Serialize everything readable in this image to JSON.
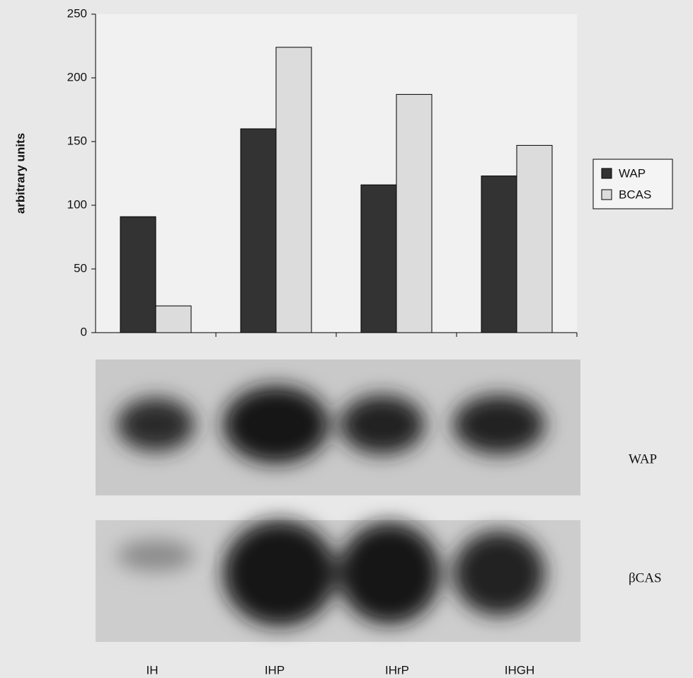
{
  "chart_data": {
    "type": "bar",
    "y_label": "arbitrary units",
    "categories": [
      "IH",
      "IHP",
      "IHrP",
      "IHGH"
    ],
    "series": [
      {
        "name": "WAP",
        "color": "#333333",
        "values": [
          91,
          160,
          116,
          123
        ]
      },
      {
        "name": "BCAS",
        "color": "#dcdcdc",
        "values": [
          21,
          224,
          187,
          147
        ]
      }
    ],
    "ylim": [
      0,
      250
    ],
    "yticks": [
      0,
      50,
      100,
      150,
      200,
      250
    ],
    "grid": false,
    "legend": "right"
  },
  "blots": {
    "labels": [
      "WAP",
      "βCAS"
    ]
  }
}
